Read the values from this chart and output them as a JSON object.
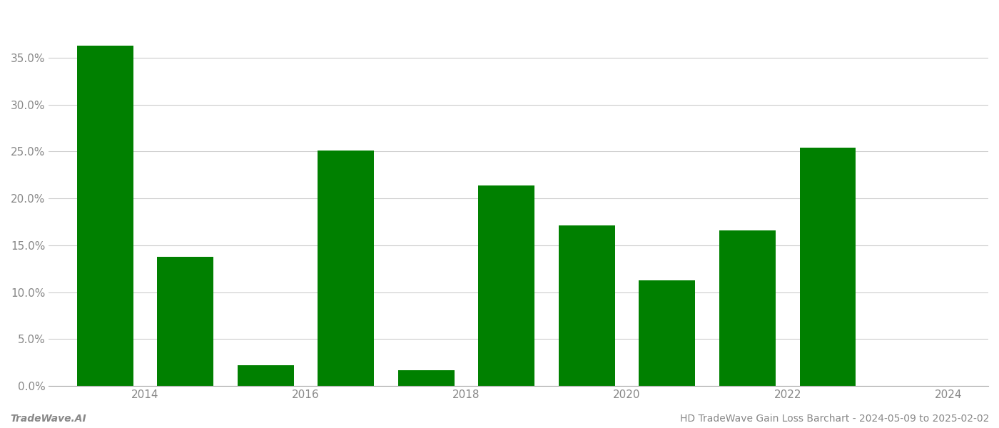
{
  "bar_positions": [
    2013.5,
    2014.5,
    2015.5,
    2016.5,
    2017.5,
    2018.5,
    2019.5,
    2020.5,
    2021.5,
    2022.5
  ],
  "values": [
    0.363,
    0.138,
    0.022,
    0.251,
    0.017,
    0.214,
    0.171,
    0.113,
    0.166,
    0.254
  ],
  "bar_color": "#008000",
  "bar_width": 0.7,
  "background_color": "#ffffff",
  "grid_color": "#cccccc",
  "tick_color": "#888888",
  "ylim": [
    0,
    0.4
  ],
  "yticks": [
    0.0,
    0.05,
    0.1,
    0.15,
    0.2,
    0.25,
    0.3,
    0.35
  ],
  "xtick_labels": [
    "2014",
    "2016",
    "2018",
    "2020",
    "2022",
    "2024"
  ],
  "xtick_positions": [
    2014,
    2016,
    2018,
    2020,
    2022,
    2024
  ],
  "xlim": [
    2012.8,
    2024.5
  ],
  "footer_left": "TradeWave.AI",
  "footer_right": "HD TradeWave Gain Loss Barchart - 2024-05-09 to 2025-02-02",
  "footer_fontsize": 10,
  "tick_fontsize": 11,
  "spine_color": "#aaaaaa"
}
